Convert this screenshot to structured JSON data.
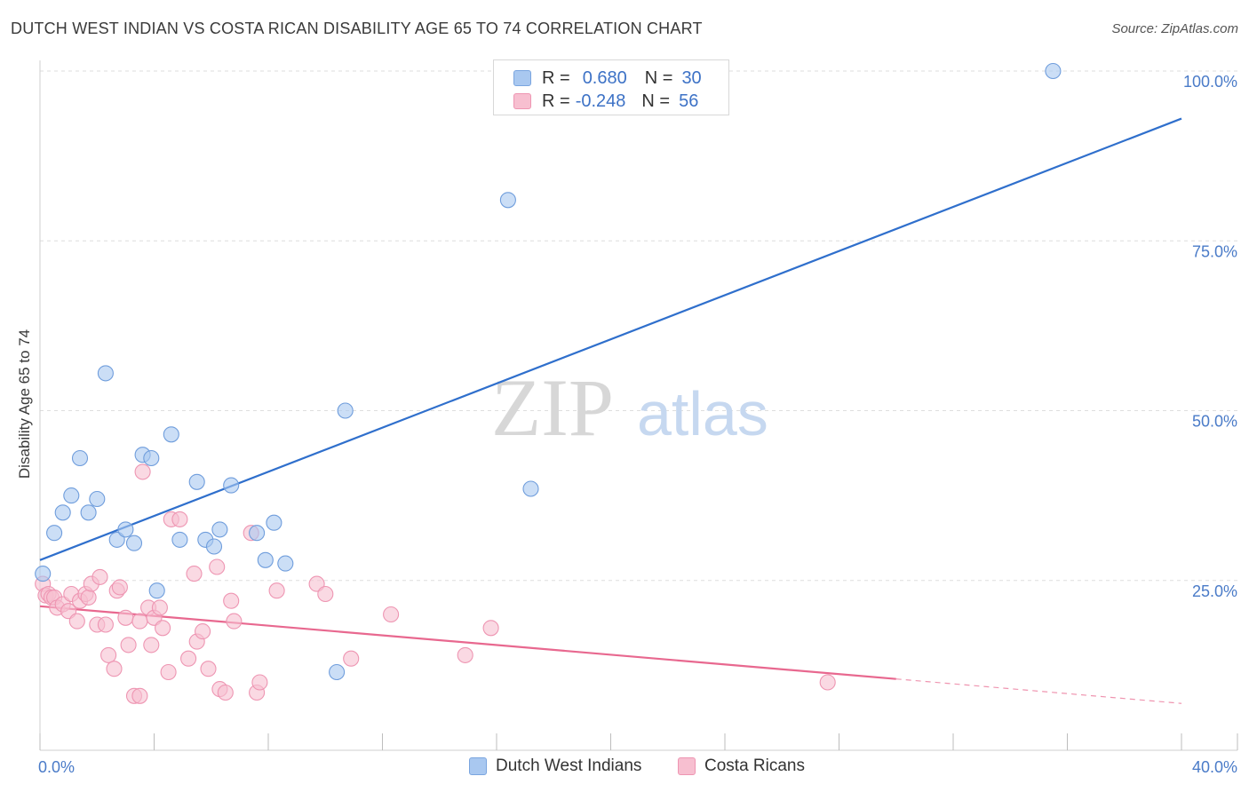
{
  "header": {
    "title": "DUTCH WEST INDIAN VS COSTA RICAN DISABILITY AGE 65 TO 74 CORRELATION CHART",
    "source": "Source: ZipAtlas.com"
  },
  "watermark": {
    "zip": "ZIP",
    "atlas": "atlas"
  },
  "legend": {
    "rows": [
      {
        "r_label": "R =",
        "r_value": "0.680",
        "n_label": "N =",
        "n_value": "30",
        "color": "#a9c8f0",
        "border": "#7aa5df"
      },
      {
        "r_label": "R =",
        "r_value": "-0.248",
        "n_label": "N =",
        "n_value": "56",
        "color": "#f7bfd0",
        "border": "#ee95b2"
      }
    ]
  },
  "chart_data": {
    "type": "scatter",
    "title": "DUTCH WEST INDIAN VS COSTA RICAN DISABILITY AGE 65 TO 74 CORRELATION CHART",
    "xlabel": "",
    "ylabel": "Disability Age 65 to 74",
    "xlim": [
      0,
      40
    ],
    "ylim": [
      0,
      100
    ],
    "x_tick_labels": [
      "0.0%",
      "40.0%"
    ],
    "y_ticks": [
      25,
      50,
      75,
      100
    ],
    "y_tick_labels": [
      "25.0%",
      "50.0%",
      "75.0%",
      "100.0%"
    ],
    "grid": true,
    "legend_position": "bottom",
    "series": [
      {
        "name": "Dutch West Indians",
        "color": "#a9c8f0",
        "stroke": "#6f9ddc",
        "line_color": "#2f6fcc",
        "trend": {
          "x": [
            0,
            40
          ],
          "y": [
            28,
            93
          ]
        },
        "points": [
          [
            0.1,
            26
          ],
          [
            0.5,
            32
          ],
          [
            0.8,
            35
          ],
          [
            1.1,
            37.5
          ],
          [
            1.4,
            43
          ],
          [
            1.7,
            35
          ],
          [
            2.0,
            37
          ],
          [
            2.3,
            55.5
          ],
          [
            2.7,
            31
          ],
          [
            3.0,
            32.5
          ],
          [
            3.3,
            30.5
          ],
          [
            3.6,
            43.5
          ],
          [
            3.9,
            43
          ],
          [
            4.1,
            23.5
          ],
          [
            4.6,
            46.5
          ],
          [
            4.9,
            31
          ],
          [
            5.5,
            39.5
          ],
          [
            5.8,
            31
          ],
          [
            6.1,
            30
          ],
          [
            6.3,
            32.5
          ],
          [
            6.7,
            39
          ],
          [
            7.6,
            32
          ],
          [
            7.9,
            28
          ],
          [
            8.2,
            33.5
          ],
          [
            8.6,
            27.5
          ],
          [
            10.7,
            50
          ],
          [
            10.4,
            11.5
          ],
          [
            16.4,
            81
          ],
          [
            17.2,
            38.5
          ],
          [
            35.5,
            100
          ]
        ]
      },
      {
        "name": "Costa Ricans",
        "color": "#f7bfd0",
        "stroke": "#ee95b2",
        "line_color": "#e8688f",
        "trend": {
          "x": [
            0,
            30
          ],
          "y": [
            21.2,
            10.5
          ]
        },
        "trend_dashed": {
          "x": [
            30,
            40
          ],
          "y": [
            10.5,
            6.9
          ]
        },
        "points": [
          [
            0.1,
            24.5
          ],
          [
            0.2,
            22.8
          ],
          [
            0.3,
            23
          ],
          [
            0.4,
            22.5
          ],
          [
            0.5,
            22.5
          ],
          [
            0.6,
            21
          ],
          [
            0.8,
            21.5
          ],
          [
            1.0,
            20.5
          ],
          [
            1.1,
            23
          ],
          [
            1.3,
            19
          ],
          [
            1.4,
            22
          ],
          [
            1.6,
            23
          ],
          [
            1.7,
            22.5
          ],
          [
            1.8,
            24.5
          ],
          [
            2.0,
            18.5
          ],
          [
            2.1,
            25.5
          ],
          [
            2.3,
            18.5
          ],
          [
            2.4,
            14
          ],
          [
            2.6,
            12
          ],
          [
            2.7,
            23.5
          ],
          [
            2.8,
            24
          ],
          [
            3.0,
            19.5
          ],
          [
            3.1,
            15.5
          ],
          [
            3.3,
            8
          ],
          [
            3.5,
            8
          ],
          [
            3.5,
            19
          ],
          [
            3.6,
            41
          ],
          [
            3.8,
            21
          ],
          [
            3.9,
            15.5
          ],
          [
            4.0,
            19.5
          ],
          [
            4.2,
            21
          ],
          [
            4.3,
            18
          ],
          [
            4.5,
            11.5
          ],
          [
            4.6,
            34
          ],
          [
            4.9,
            34
          ],
          [
            5.2,
            13.5
          ],
          [
            5.4,
            26
          ],
          [
            5.5,
            16
          ],
          [
            5.7,
            17.5
          ],
          [
            5.9,
            12
          ],
          [
            6.2,
            27
          ],
          [
            6.3,
            9
          ],
          [
            6.5,
            8.5
          ],
          [
            6.7,
            22
          ],
          [
            6.8,
            19
          ],
          [
            7.4,
            32
          ],
          [
            7.6,
            8.5
          ],
          [
            7.7,
            10
          ],
          [
            8.3,
            23.5
          ],
          [
            9.7,
            24.5
          ],
          [
            10.0,
            23
          ],
          [
            10.9,
            13.5
          ],
          [
            12.3,
            20
          ],
          [
            14.9,
            14
          ],
          [
            15.8,
            18
          ],
          [
            27.6,
            10
          ]
        ]
      }
    ]
  },
  "bottom_legend": {
    "items": [
      {
        "label": "Dutch West Indians",
        "color": "#a9c8f0",
        "border": "#7aa5df"
      },
      {
        "label": "Costa Ricans",
        "color": "#f7bfd0",
        "border": "#ee95b2"
      }
    ]
  }
}
